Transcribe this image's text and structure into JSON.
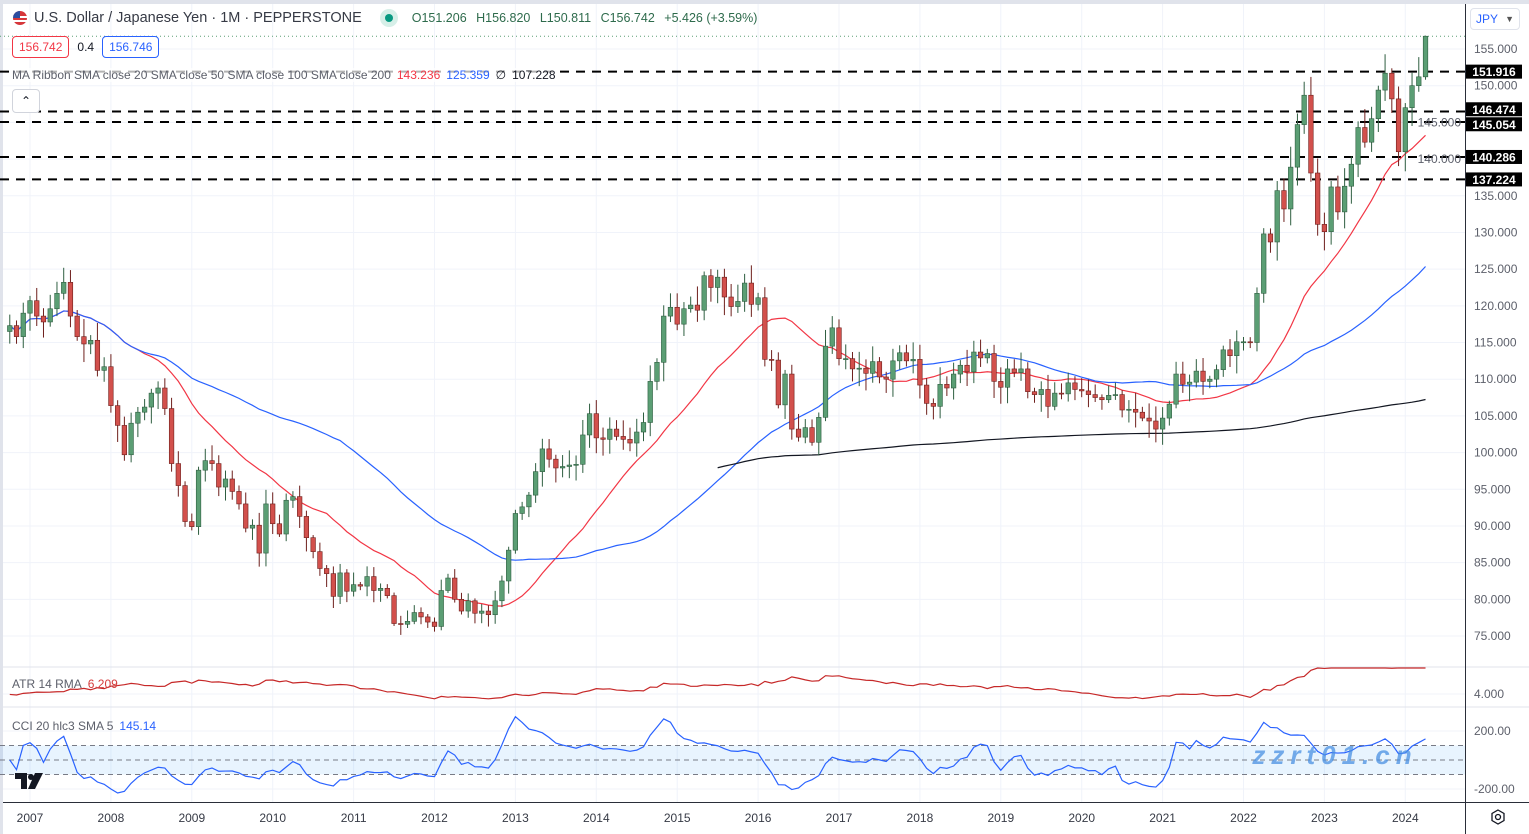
{
  "header": {
    "title": "U.S. Dollar / Japanese Yen · 1M · PEPPERSTONE",
    "open": "O151.206",
    "high": "H156.820",
    "low": "L150.811",
    "close": "C156.742",
    "change": "+5.426 (+3.59%)",
    "status_color": "#089981"
  },
  "quote": {
    "bid": "156.742",
    "spread": "0.4",
    "ask": "156.746"
  },
  "ma_legend": {
    "label": "MA Ribbon SMA close 20 SMA close 50 SMA close 100 SMA close 200",
    "v20": "143.236",
    "v50": "125.359",
    "v100": "∅",
    "v200": "107.228"
  },
  "atr_legend": {
    "label": "ATR 14 RMA",
    "value": "6.209"
  },
  "cci_legend": {
    "label": "CCI 20 hlc3 SMA 5",
    "value": "145.14"
  },
  "currency_select": "JPY",
  "watermark": "zzrt01.cn",
  "chart_data": {
    "type": "candlestick",
    "interval": "1M",
    "start": "2006-10",
    "closes": [
      117.3,
      115.8,
      119.0,
      120.7,
      118.6,
      117.8,
      119.6,
      121.7,
      123.2,
      118.6,
      115.8,
      114.8,
      115.3,
      111.2,
      111.7,
      106.4,
      103.7,
      99.7,
      104.0,
      105.5,
      106.2,
      108.1,
      108.8,
      106.0,
      98.5,
      95.5,
      90.6,
      89.9,
      97.6,
      98.9,
      98.5,
      95.3,
      96.4,
      94.7,
      93.0,
      89.7,
      90.1,
      86.3,
      93.0,
      90.3,
      88.9,
      93.5,
      94.0,
      91.3,
      88.4,
      86.5,
      84.2,
      83.5,
      80.4,
      83.6,
      81.1,
      82.0,
      81.8,
      83.1,
      81.2,
      81.5,
      80.5,
      76.7,
      76.6,
      77.0,
      78.2,
      77.6,
      76.9,
      76.3,
      81.2,
      82.9,
      80.0,
      78.4,
      79.8,
      78.1,
      78.4,
      77.9,
      79.8,
      82.5,
      86.7,
      91.7,
      92.6,
      94.2,
      97.4,
      100.5,
      99.1,
      97.9,
      98.1,
      98.3,
      98.4,
      102.4,
      105.3,
      102.0,
      101.8,
      103.2,
      102.2,
      101.8,
      101.3,
      102.8,
      104.1,
      109.7,
      112.3,
      118.6,
      119.8,
      117.5,
      119.6,
      120.1,
      119.4,
      124.1,
      122.5,
      123.9,
      121.2,
      119.9,
      120.6,
      123.1,
      120.2,
      121.1,
      112.7,
      112.6,
      106.5,
      110.7,
      103.2,
      102.1,
      103.4,
      101.4,
      104.8,
      114.5,
      117.0,
      112.8,
      112.8,
      111.4,
      111.5,
      110.8,
      112.4,
      110.3,
      110.0,
      112.5,
      113.6,
      112.5,
      112.7,
      109.2,
      106.7,
      106.3,
      109.3,
      108.8,
      110.7,
      111.9,
      111.0,
      113.7,
      112.9,
      113.5,
      109.7,
      108.9,
      111.4,
      110.9,
      111.4,
      108.3,
      107.9,
      108.6,
      106.3,
      108.1,
      108.0,
      109.5,
      108.6,
      108.4,
      107.9,
      107.5,
      107.2,
      107.8,
      107.9,
      105.8,
      105.9,
      105.5,
      104.7,
      104.3,
      103.2,
      104.7,
      106.6,
      110.7,
      109.3,
      109.6,
      111.1,
      109.7,
      110.0,
      111.3,
      114.0,
      113.2,
      115.1,
      115.1,
      115.0,
      121.7,
      129.8,
      128.7,
      135.7,
      133.2,
      138.9,
      144.7,
      148.7,
      138.1,
      131.1,
      130.1,
      136.2,
      132.8,
      136.3,
      139.3,
      144.3,
      142.3,
      145.5,
      149.4,
      151.7,
      148.2,
      141.0,
      147.0,
      150.0,
      151.206,
      156.742
    ],
    "last_bar": {
      "open": 151.206,
      "high": 156.82,
      "low": 150.811,
      "close": 156.742
    },
    "moving_averages": [
      {
        "period": 20,
        "color": "#f23645"
      },
      {
        "period": 50,
        "color": "#2962ff"
      },
      {
        "period": 200,
        "color": "#131722"
      }
    ],
    "horizontal_levels": [
      "151.916",
      "146.474",
      "145.054",
      "140.286",
      "137.224"
    ],
    "y_ticks": [
      "155.000",
      "150.000",
      "145.000",
      "140.000",
      "135.000",
      "130.000",
      "125.000",
      "120.000",
      "115.000",
      "110.000",
      "105.000",
      "100.000",
      "95.000",
      "90.000",
      "85.000",
      "80.000",
      "75.000"
    ],
    "y_range": [
      75,
      155
    ],
    "x_ticks": [
      "2007",
      "2008",
      "2009",
      "2010",
      "2011",
      "2012",
      "2013",
      "2014",
      "2015",
      "2016",
      "2017",
      "2018",
      "2019",
      "2020",
      "2021",
      "2022",
      "2023",
      "2024"
    ],
    "atr_ticks": [
      "4.000"
    ],
    "cci_ticks": [
      "200.00",
      "-200.00"
    ],
    "cci_band": [
      -100,
      100
    ],
    "colors": {
      "up": "#5b9e74",
      "down": "#d2504c",
      "atr": "#c62828",
      "cci": "#2962ff",
      "grid": "#f0f3fa"
    }
  }
}
